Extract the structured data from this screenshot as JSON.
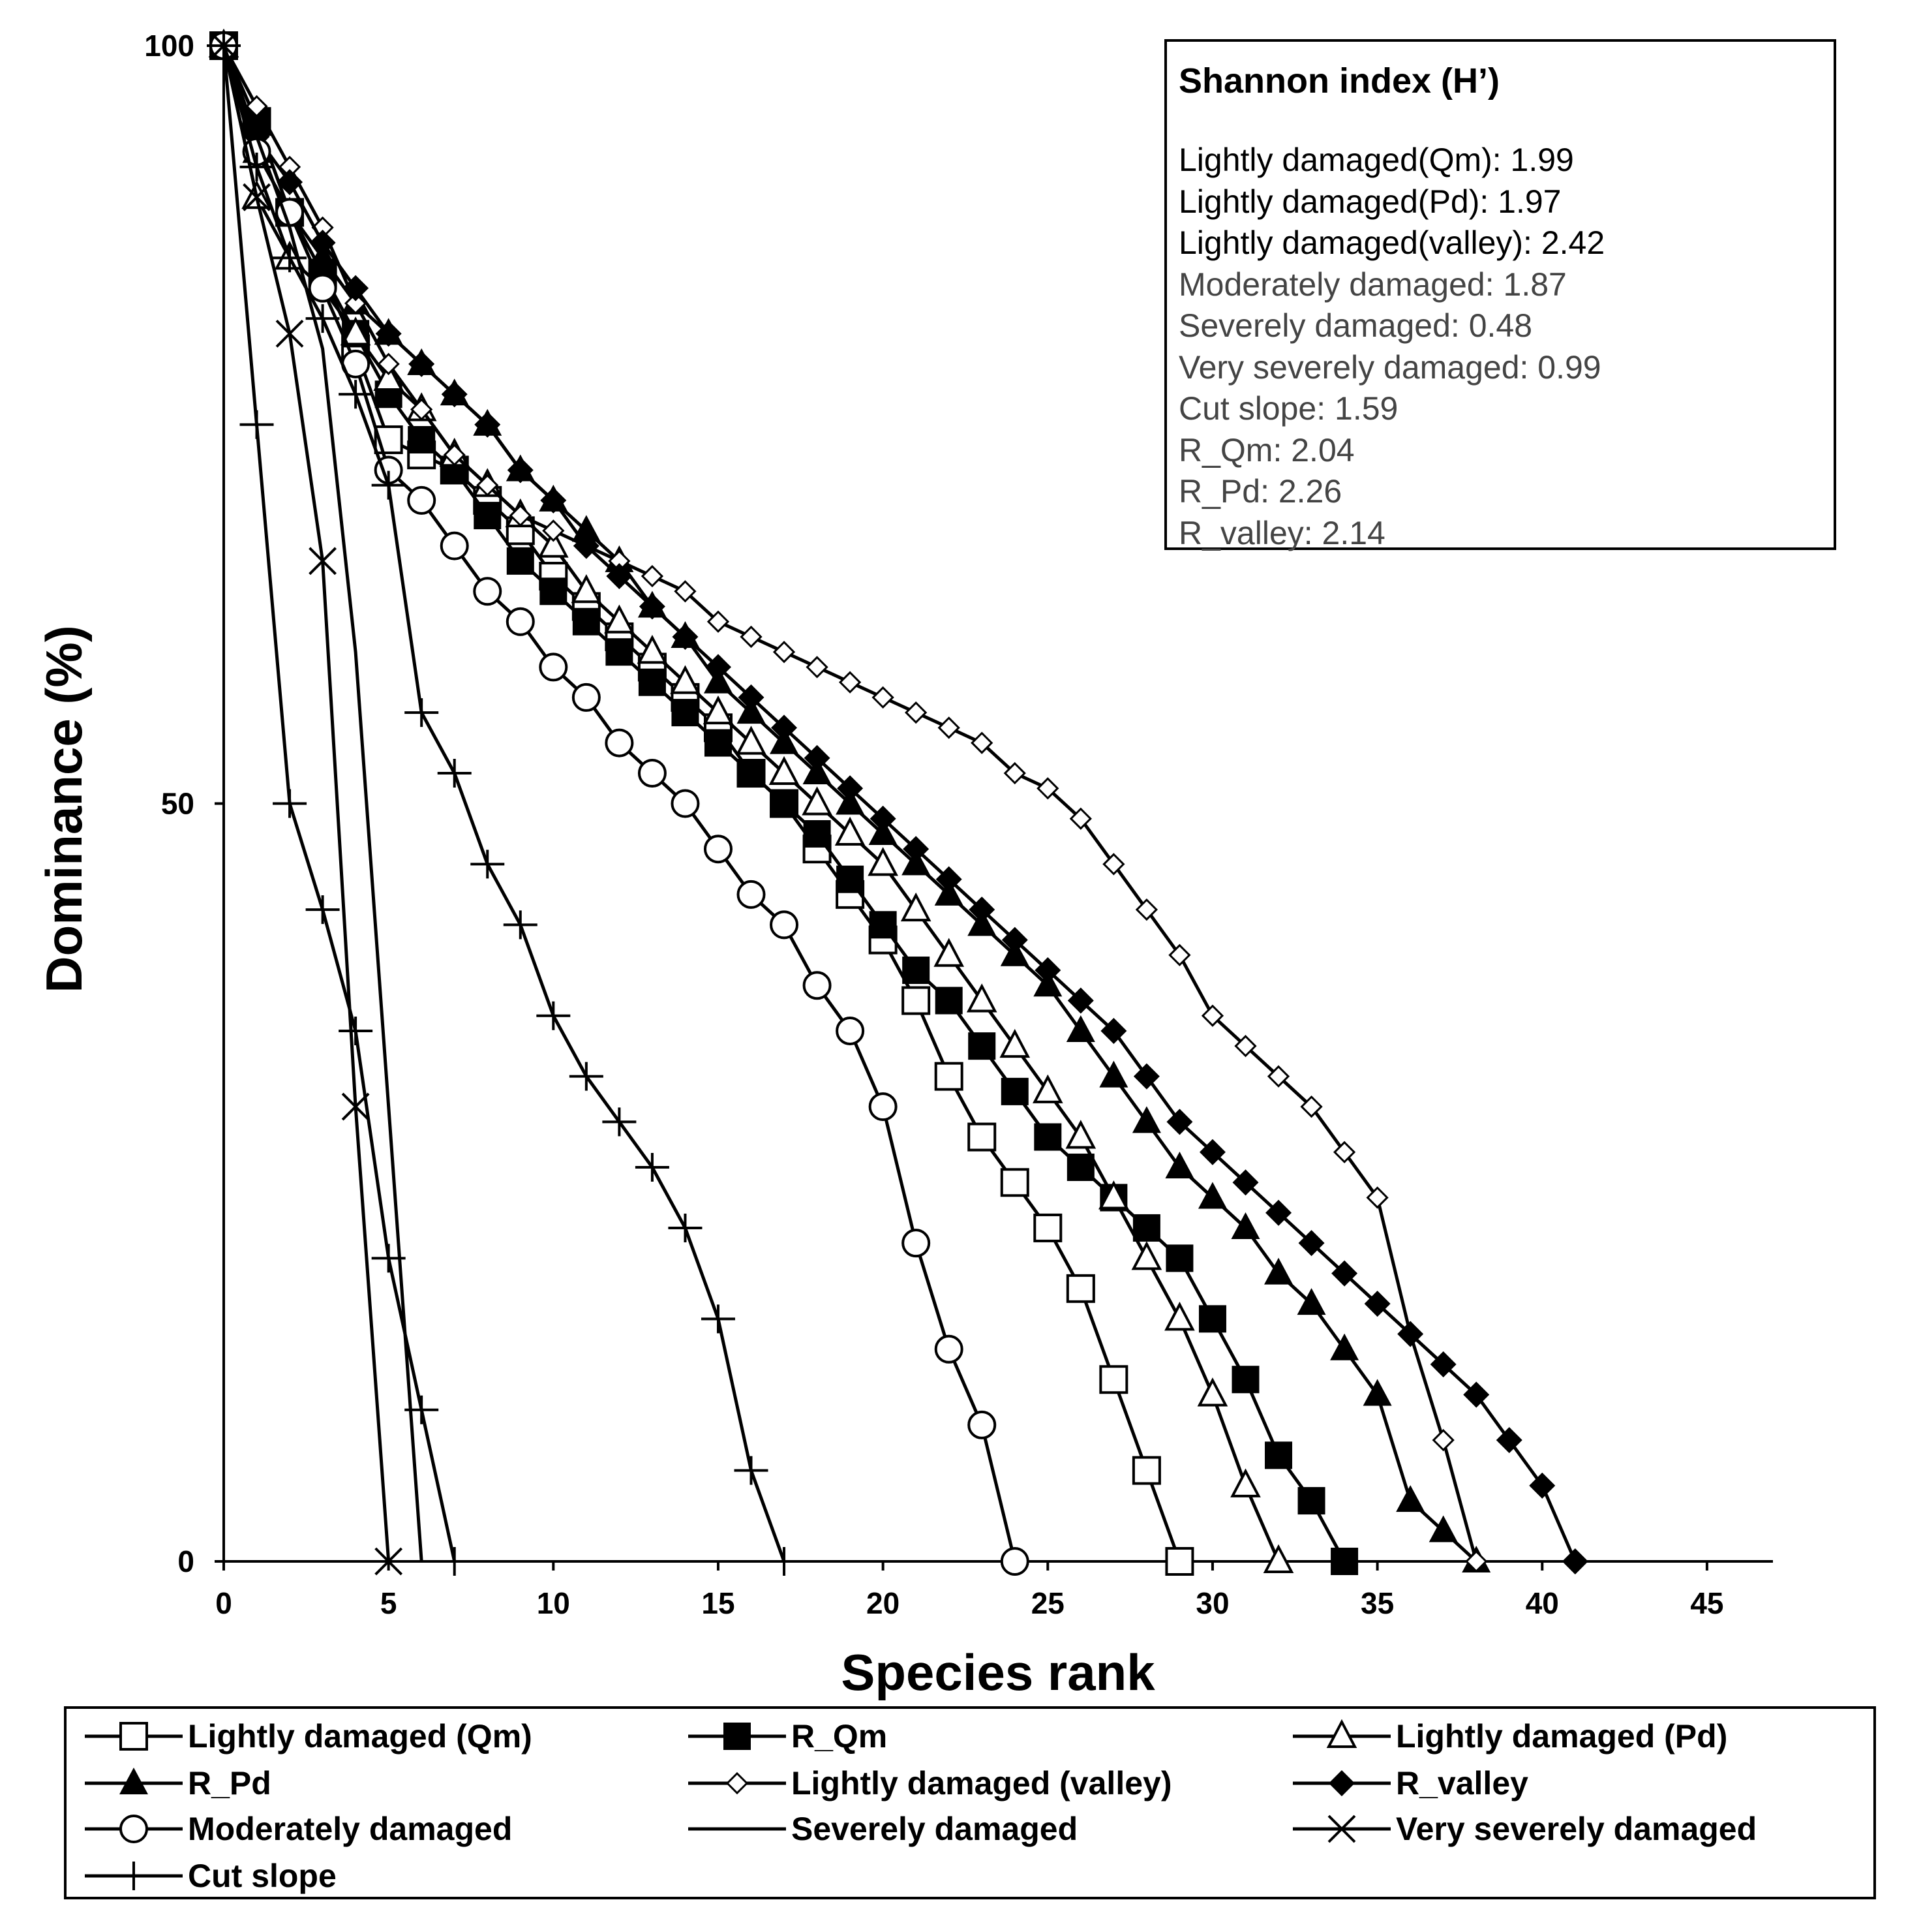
{
  "chart_data": {
    "type": "line",
    "title": "",
    "xlabel": "Species rank",
    "ylabel": "Dominance (%)",
    "xlim": [
      0,
      47
    ],
    "ylim": [
      0,
      100
    ],
    "x_ticks": [
      0,
      5,
      10,
      15,
      20,
      25,
      30,
      35,
      40,
      45
    ],
    "y_ticks": [
      0,
      50,
      100
    ],
    "grid": false,
    "legend_position": "bottom",
    "series": [
      {
        "name": "Lightly damaged (Qm)",
        "marker": "square-open",
        "values": [
          100,
          95,
          89,
          85,
          80,
          74,
          73,
          72,
          70,
          68,
          65,
          63,
          61,
          59,
          57,
          55,
          52,
          50,
          47,
          44,
          41,
          37,
          32,
          28,
          25,
          22,
          18,
          12,
          6,
          0
        ]
      },
      {
        "name": "R_Qm",
        "marker": "square-filled",
        "values": [
          100,
          95,
          89,
          85,
          81,
          77,
          74,
          72,
          69,
          66,
          64,
          62,
          60,
          58,
          56,
          54,
          52,
          50,
          48,
          45,
          42,
          39,
          37,
          34,
          31,
          28,
          26,
          24,
          22,
          20,
          16,
          12,
          7,
          4,
          0
        ]
      },
      {
        "name": "Lightly damaged (Pd)",
        "marker": "triangle-open",
        "values": [
          100,
          90,
          86,
          84,
          81,
          78,
          76,
          73,
          71,
          69,
          67,
          64,
          62,
          60,
          58,
          56,
          54,
          52,
          50,
          48,
          46,
          43,
          40,
          37,
          34,
          31,
          28,
          24,
          20,
          16,
          11,
          5,
          0
        ]
      },
      {
        "name": "R_Pd",
        "marker": "triangle-filled",
        "values": [
          100,
          93,
          89,
          86,
          83,
          81,
          79,
          77,
          75,
          72,
          70,
          68,
          66,
          63,
          61,
          58,
          56,
          54,
          52,
          50,
          48,
          46,
          44,
          42,
          40,
          38,
          35,
          32,
          29,
          26,
          24,
          22,
          19,
          17,
          14,
          11,
          4,
          2,
          0
        ]
      },
      {
        "name": "Lightly damaged (valley)",
        "marker": "diamond-open",
        "values": [
          100,
          96,
          92,
          88,
          83,
          79,
          76,
          73,
          71,
          69,
          68,
          67,
          66,
          65,
          64,
          62,
          61,
          60,
          59,
          58,
          57,
          56,
          55,
          54,
          52,
          51,
          49,
          46,
          43,
          40,
          36,
          34,
          32,
          30,
          27,
          24,
          15,
          8,
          0
        ]
      },
      {
        "name": "R_valley",
        "marker": "diamond-filled",
        "values": [
          100,
          94,
          91,
          87,
          84,
          81,
          79,
          77,
          75,
          72,
          70,
          67,
          65,
          63,
          61,
          59,
          57,
          55,
          53,
          51,
          49,
          47,
          45,
          43,
          41,
          39,
          37,
          35,
          32,
          29,
          27,
          25,
          23,
          21,
          19,
          17,
          15,
          13,
          11,
          8,
          5,
          0
        ]
      },
      {
        "name": "Moderately damaged",
        "marker": "circle-open",
        "values": [
          100,
          93,
          89,
          84,
          79,
          72,
          70,
          67,
          64,
          62,
          59,
          57,
          54,
          52,
          50,
          47,
          44,
          42,
          38,
          35,
          30,
          21,
          14,
          9,
          0
        ]
      },
      {
        "name": "Severely damaged",
        "marker": "none",
        "values": [
          100,
          94,
          88,
          80,
          60,
          30,
          0
        ]
      },
      {
        "name": "Very severely damaged",
        "marker": "cross",
        "values": [
          100,
          90,
          81,
          66,
          30,
          0
        ]
      },
      {
        "name": "Cut slope",
        "marker": "plus",
        "values": [
          100,
          75,
          50,
          43,
          35,
          20,
          10,
          0
        ]
      },
      {
        "name": "Cut slope",
        "marker": "plus",
        "values": [
          100,
          92,
          86,
          82,
          77,
          71,
          56,
          52,
          46,
          42,
          36,
          32,
          29,
          26,
          22,
          16,
          6,
          0
        ]
      }
    ]
  },
  "shannon": {
    "title": "Shannon index (H’)",
    "rows": [
      {
        "label": "Lightly damaged(Qm): 1.99",
        "color": "#000000"
      },
      {
        "label": "Lightly damaged(Pd): 1.97",
        "color": "#000000"
      },
      {
        "label": "Lightly damaged(valley): 2.42",
        "color": "#000000"
      },
      {
        "label": "Moderately damaged: 1.87",
        "color": "#444444"
      },
      {
        "label": "Severely damaged: 0.48",
        "color": "#444444"
      },
      {
        "label": "Very severely damaged: 0.99",
        "color": "#444444"
      },
      {
        "label": "Cut slope: 1.59",
        "color": "#444444"
      },
      {
        "label": "R_Qm: 2.04",
        "color": "#444444"
      },
      {
        "label": "R_Pd: 2.26",
        "color": "#444444"
      },
      {
        "label": "R_valley: 2.14",
        "color": "#444444"
      }
    ]
  },
  "legend": [
    {
      "label": "Lightly damaged (Qm)",
      "marker": "square-open"
    },
    {
      "label": "R_Qm",
      "marker": "square-filled"
    },
    {
      "label": "Lightly damaged (Pd)",
      "marker": "triangle-open"
    },
    {
      "label": "R_Pd",
      "marker": "triangle-filled"
    },
    {
      "label": "Lightly damaged (valley)",
      "marker": "diamond-open"
    },
    {
      "label": "R_valley",
      "marker": "diamond-filled"
    },
    {
      "label": "Moderately damaged",
      "marker": "circle-open"
    },
    {
      "label": "Severely damaged",
      "marker": "none"
    },
    {
      "label": "Very severely damaged",
      "marker": "cross"
    },
    {
      "label": "Cut slope",
      "marker": "plus"
    }
  ]
}
